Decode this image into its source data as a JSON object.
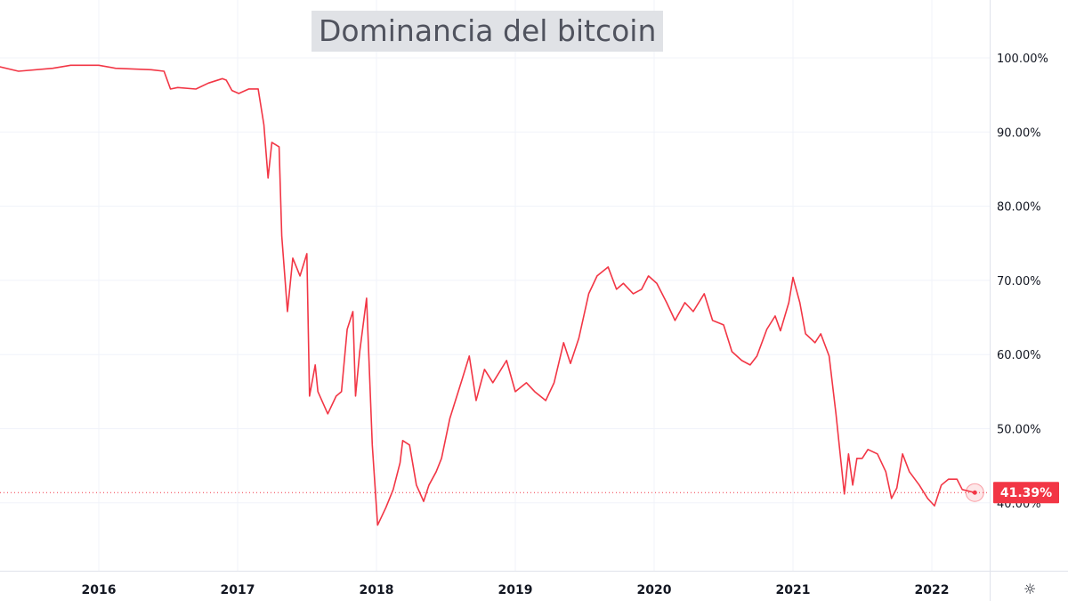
{
  "title": "Dominancia del bitcoin",
  "settings_icon": "gear-icon",
  "colors": {
    "line": "#f23645",
    "grid": "#f0f3fa",
    "text": "#131722",
    "title_bg": "#e0e2e6",
    "title_text": "#50535e"
  },
  "chart_data": {
    "type": "line",
    "title": "Dominancia del bitcoin",
    "x_ticks": [
      "2016",
      "2017",
      "2018",
      "2019",
      "2020",
      "2021",
      "2022"
    ],
    "y_ticks": [
      "40.00%",
      "50.00%",
      "60.00%",
      "70.00%",
      "80.00%",
      "90.00%",
      "100.00%"
    ],
    "y_tick_values": [
      40,
      50,
      60,
      70,
      80,
      90,
      100
    ],
    "ylim": [
      30,
      104
    ],
    "xlim": [
      "2015-04-16",
      "2022-06-30"
    ],
    "grid": true,
    "last_value_label": "41.39%",
    "last_value": 41.39,
    "series": [
      {
        "points": [
          [
            "2015-04-16",
            98.8
          ],
          [
            "2015-06-04",
            98.2
          ],
          [
            "2015-09-02",
            98.6
          ],
          [
            "2015-10-19",
            99.0
          ],
          [
            "2016-01-01",
            99.0
          ],
          [
            "2016-02-14",
            98.6
          ],
          [
            "2016-05-18",
            98.4
          ],
          [
            "2016-06-21",
            98.2
          ],
          [
            "2016-07-08",
            95.8
          ],
          [
            "2016-07-27",
            96.0
          ],
          [
            "2016-09-13",
            95.8
          ],
          [
            "2016-10-16",
            96.6
          ],
          [
            "2016-11-22",
            97.2
          ],
          [
            "2016-12-02",
            97.0
          ],
          [
            "2016-12-17",
            95.6
          ],
          [
            "2017-01-04",
            95.2
          ],
          [
            "2017-01-30",
            95.8
          ],
          [
            "2017-02-24",
            95.8
          ],
          [
            "2017-03-11",
            91.0
          ],
          [
            "2017-03-22",
            83.8
          ],
          [
            "2017-04-01",
            88.6
          ],
          [
            "2017-04-20",
            88.0
          ],
          [
            "2017-04-27",
            76.0
          ],
          [
            "2017-05-12",
            65.8
          ],
          [
            "2017-05-26",
            73.0
          ],
          [
            "2017-06-14",
            70.6
          ],
          [
            "2017-07-02",
            73.6
          ],
          [
            "2017-07-09",
            54.4
          ],
          [
            "2017-07-24",
            58.6
          ],
          [
            "2017-07-31",
            55.0
          ],
          [
            "2017-08-26",
            52.0
          ],
          [
            "2017-09-17",
            54.4
          ],
          [
            "2017-10-01",
            55.0
          ],
          [
            "2017-10-16",
            63.4
          ],
          [
            "2017-10-31",
            65.8
          ],
          [
            "2017-11-07",
            54.4
          ],
          [
            "2017-11-18",
            60.4
          ],
          [
            "2017-12-06",
            67.6
          ],
          [
            "2017-12-21",
            47.8
          ],
          [
            "2018-01-04",
            37.0
          ],
          [
            "2018-01-26",
            39.4
          ],
          [
            "2018-02-14",
            41.8
          ],
          [
            "2018-03-04",
            45.4
          ],
          [
            "2018-03-11",
            48.4
          ],
          [
            "2018-03-29",
            47.8
          ],
          [
            "2018-04-16",
            42.4
          ],
          [
            "2018-05-05",
            40.2
          ],
          [
            "2018-05-19",
            42.4
          ],
          [
            "2018-06-07",
            44.2
          ],
          [
            "2018-06-21",
            46.0
          ],
          [
            "2018-07-13",
            51.4
          ],
          [
            "2018-08-04",
            55.0
          ],
          [
            "2018-08-15",
            56.8
          ],
          [
            "2018-09-02",
            59.8
          ],
          [
            "2018-09-20",
            53.8
          ],
          [
            "2018-10-12",
            58.0
          ],
          [
            "2018-11-03",
            56.2
          ],
          [
            "2018-12-09",
            59.2
          ],
          [
            "2019-01-01",
            55.0
          ],
          [
            "2019-01-30",
            56.2
          ],
          [
            "2019-02-21",
            55.0
          ],
          [
            "2019-03-22",
            53.8
          ],
          [
            "2019-04-13",
            56.2
          ],
          [
            "2019-05-08",
            61.6
          ],
          [
            "2019-05-26",
            58.8
          ],
          [
            "2019-06-17",
            62.2
          ],
          [
            "2019-07-13",
            68.2
          ],
          [
            "2019-08-04",
            70.6
          ],
          [
            "2019-09-02",
            71.8
          ],
          [
            "2019-09-24",
            68.8
          ],
          [
            "2019-10-12",
            69.6
          ],
          [
            "2019-11-07",
            68.2
          ],
          [
            "2019-11-29",
            68.8
          ],
          [
            "2019-12-17",
            70.6
          ],
          [
            "2020-01-08",
            69.6
          ],
          [
            "2020-02-03",
            67.0
          ],
          [
            "2020-02-25",
            64.6
          ],
          [
            "2020-03-22",
            67.0
          ],
          [
            "2020-04-13",
            65.8
          ],
          [
            "2020-05-12",
            68.2
          ],
          [
            "2020-06-03",
            64.6
          ],
          [
            "2020-07-02",
            64.0
          ],
          [
            "2020-07-24",
            60.4
          ],
          [
            "2020-08-19",
            59.2
          ],
          [
            "2020-09-10",
            58.6
          ],
          [
            "2020-09-28",
            59.8
          ],
          [
            "2020-10-24",
            63.4
          ],
          [
            "2020-11-15",
            65.2
          ],
          [
            "2020-11-29",
            63.2
          ],
          [
            "2020-12-21",
            67.0
          ],
          [
            "2021-01-01",
            70.4
          ],
          [
            "2021-01-19",
            67.0
          ],
          [
            "2021-02-03",
            62.8
          ],
          [
            "2021-02-28",
            61.6
          ],
          [
            "2021-03-15",
            62.8
          ],
          [
            "2021-04-06",
            59.8
          ],
          [
            "2021-04-24",
            52.0
          ],
          [
            "2021-05-16",
            41.2
          ],
          [
            "2021-05-27",
            46.6
          ],
          [
            "2021-06-07",
            42.4
          ],
          [
            "2021-06-18",
            46.0
          ],
          [
            "2021-07-02",
            46.0
          ],
          [
            "2021-07-17",
            47.2
          ],
          [
            "2021-08-11",
            46.6
          ],
          [
            "2021-09-02",
            44.2
          ],
          [
            "2021-09-17",
            40.6
          ],
          [
            "2021-10-01",
            42.0
          ],
          [
            "2021-10-16",
            46.6
          ],
          [
            "2021-11-03",
            44.2
          ],
          [
            "2021-11-29",
            42.4
          ],
          [
            "2021-12-21",
            40.6
          ],
          [
            "2022-01-08",
            39.6
          ],
          [
            "2022-01-26",
            42.4
          ],
          [
            "2022-02-14",
            43.2
          ],
          [
            "2022-03-08",
            43.2
          ],
          [
            "2022-03-22",
            41.8
          ],
          [
            "2022-04-24",
            41.39
          ]
        ]
      }
    ]
  }
}
